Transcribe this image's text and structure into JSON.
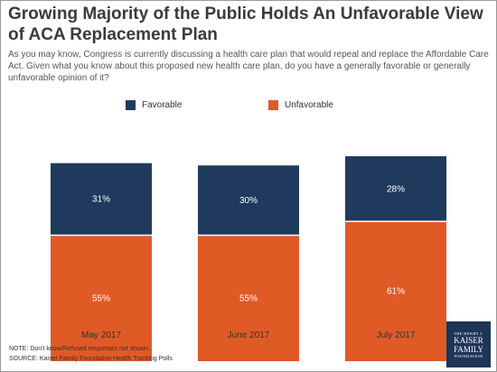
{
  "title": "Growing Majority of the Public Holds An Unfavorable View of ACA Replacement Plan",
  "subtitle": "As you may know, Congress is currently discussing a health care plan that would repeal and replace the Affordable Care Act. Given what you know about this proposed new health care plan, do you have a generally favorable or generally unfavorable opinion of it?",
  "colors": {
    "favorable": "#1f3a5c",
    "unfavorable": "#e05a26"
  },
  "chart_data": {
    "type": "bar",
    "stacked": true,
    "categories": [
      "May 2017",
      "June 2017",
      "July 2017"
    ],
    "series": [
      {
        "name": "Favorable",
        "values": [
          31,
          30,
          28
        ],
        "labels": [
          "31%",
          "30%",
          "28%"
        ]
      },
      {
        "name": "Unfavorable",
        "values": [
          55,
          55,
          61
        ],
        "labels": [
          "55%",
          "55%",
          "61%"
        ]
      }
    ],
    "legend_position": "top",
    "grid": false
  },
  "notes": {
    "note": "NOTE: Don't know/Refused responses not shown.",
    "source": "SOURCE: Kaiser Family Foundation Health Tracking Polls"
  },
  "logo": {
    "line1": "THE HENRY J.",
    "line2": "KAISER",
    "line3": "FAMILY",
    "line4": "FOUNDATION"
  }
}
